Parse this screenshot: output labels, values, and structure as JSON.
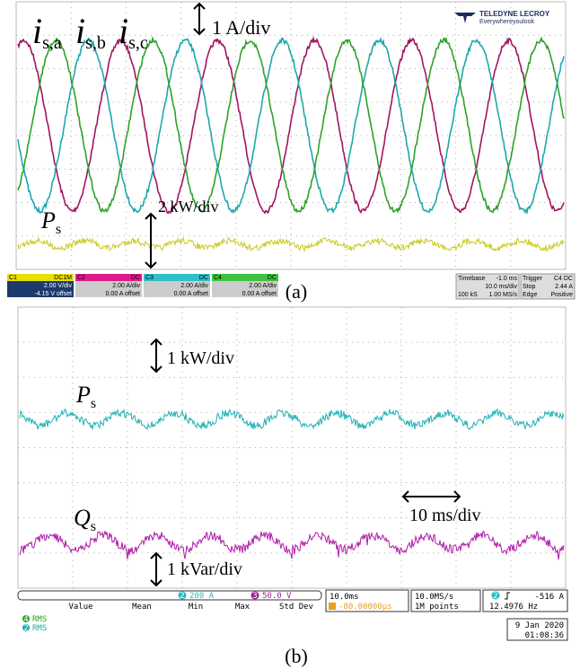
{
  "panel_a": {
    "labels": {
      "i_a": "i",
      "sub_a": "s,a",
      "i_b": "i",
      "sub_b": "s,b",
      "i_c": "i",
      "sub_c": "s,c",
      "current_scale": "1 A/div",
      "p": "P",
      "p_sub": "s",
      "power_scale": "2 kW/div"
    },
    "brand": "TELEDYNE LECROY",
    "tagline": "Everywhereyoulook",
    "channels": [
      {
        "name": "C1",
        "coupling": "DC1M",
        "scale": "2.00 V/div",
        "offset": "-4.15 V offset"
      },
      {
        "name": "C2",
        "coupling": "DC",
        "scale": "2.00 A/div",
        "offset": "0.00 A offset"
      },
      {
        "name": "C3",
        "coupling": "DC",
        "scale": "2.00 A/div",
        "offset": "0.00 A offset"
      },
      {
        "name": "C4",
        "coupling": "DC",
        "scale": "2.00 A/div",
        "offset": "0.00 A offset"
      }
    ],
    "timebase": {
      "label": "Timebase",
      "delay": "-1.0 ms",
      "scale": "10.0 ms/div",
      "samples": "100 kS",
      "rate": "1.00 MS/s"
    },
    "trigger": {
      "label": "Trigger",
      "source": "C4 DC",
      "mode": "Stop",
      "level": "2.44 A",
      "type": "Edge",
      "slope": "Positive"
    },
    "caption": "(a)"
  },
  "panel_b": {
    "labels": {
      "power_scale": "1 kW/div",
      "p": "P",
      "p_sub": "s",
      "q": "Q",
      "q_sub": "s",
      "time_scale": "10 ms/div",
      "reactive_scale": "1 kVar/div"
    },
    "status": {
      "ch2": "2",
      "ch2_scale": "200 A",
      "ch3": "3",
      "ch3_scale": "50.0 V",
      "headers": [
        "Value",
        "Mean",
        "Min",
        "Max",
        "Std Dev"
      ],
      "rows": [
        {
          "ch": "4",
          "meas": "RMS"
        },
        {
          "ch": "2",
          "meas": "RMS"
        }
      ],
      "horizontal": "10.0ms",
      "position": "-80.00000µs",
      "rate": "10.0MS/s",
      "points": "1M points",
      "trigger_ch": "2",
      "trigger_level": "-516 A",
      "frequency": "12.4976 Hz",
      "date": "9 Jan 2020",
      "time": "01:08:36"
    },
    "caption": "(b)"
  }
}
